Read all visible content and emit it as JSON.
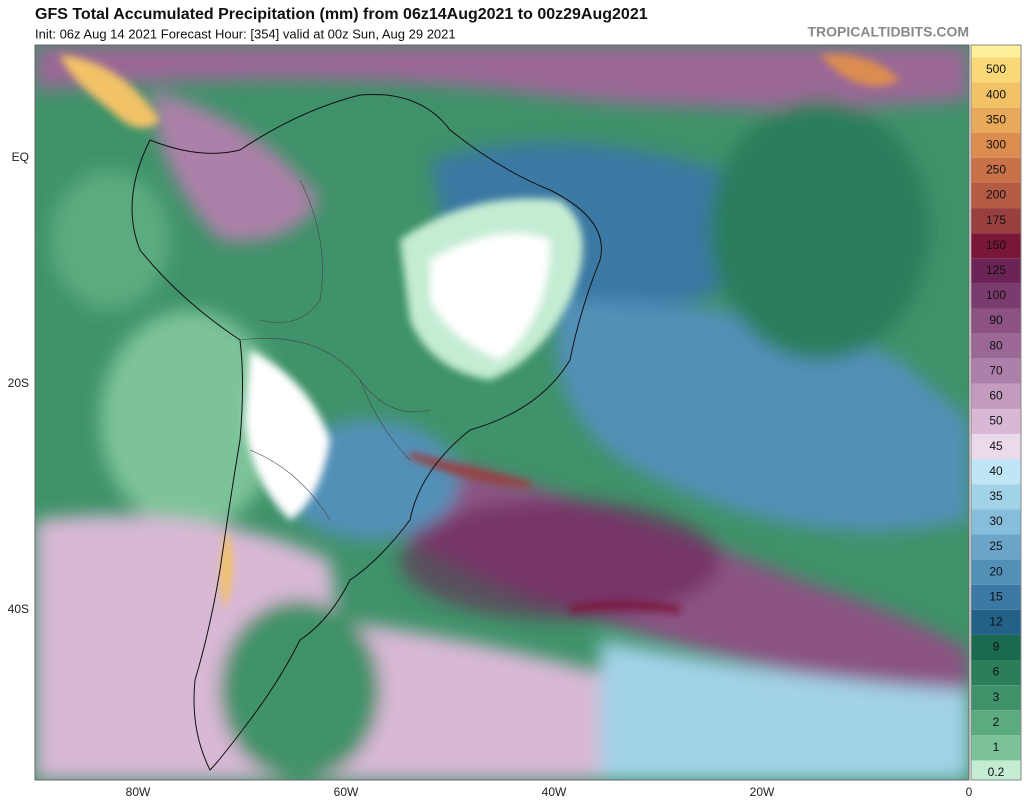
{
  "header": {
    "title": "GFS Total Accumulated Precipitation (mm) from 06z14Aug2021 to 00z29Aug2021",
    "subtitle": "Init: 06z Aug 14 2021   Forecast Hour: [354]   valid at 00z Sun, Aug 29 2021",
    "source": "TROPICALTIDBITS.COM"
  },
  "map": {
    "lon_labels": [
      "80W",
      "60W",
      "40W",
      "20W",
      "0"
    ],
    "lat_labels": [
      "EQ",
      "20S",
      "40S"
    ]
  },
  "colorbar": {
    "labels": [
      "500",
      "400",
      "350",
      "300",
      "250",
      "200",
      "175",
      "150",
      "125",
      "100",
      "90",
      "80",
      "70",
      "60",
      "50",
      "45",
      "40",
      "35",
      "30",
      "25",
      "20",
      "15",
      "12",
      "9",
      "6",
      "3",
      "2",
      "1",
      "0.2"
    ],
    "colors": [
      "#fff09a",
      "#f9d977",
      "#f2c267",
      "#e8a95a",
      "#db8d50",
      "#c9724a",
      "#b45a45",
      "#993f40",
      "#7a1636",
      "#6a2456",
      "#7a3c6f",
      "#8b5282",
      "#9b6896",
      "#ad80a9",
      "#c39bbf",
      "#d8b8d5",
      "#eadaea",
      "#bfe6f4",
      "#a2d2e8",
      "#86bdda",
      "#6ba5c9",
      "#5290b8",
      "#3b78a3",
      "#246189",
      "#1a6a4e",
      "#2c7e5b",
      "#3f9269",
      "#5caa80",
      "#7dc39a",
      "#c4ecd3",
      "#ffffff"
    ]
  }
}
